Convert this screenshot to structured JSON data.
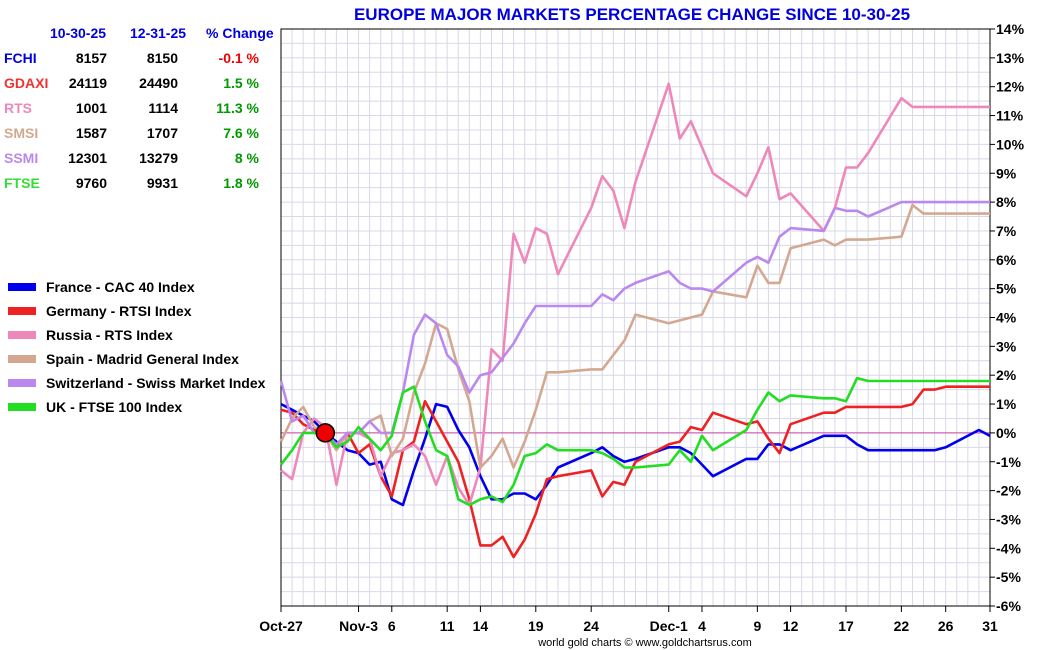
{
  "chart_data": {
    "type": "line",
    "title": "EUROPE MAJOR MARKETS PERCENTAGE CHANGE SINCE 10-30-25",
    "footer": "world gold charts © www.goldchartsrus.com",
    "ylim": [
      -6,
      14
    ],
    "y_ticks": [
      "14%",
      "13%",
      "12%",
      "11%",
      "10%",
      "9%",
      "8%",
      "7%",
      "6%",
      "5%",
      "4%",
      "3%",
      "2%",
      "1%",
      "0%",
      "-1%",
      "-2%",
      "-3%",
      "-4%",
      "-5%",
      "-6%"
    ],
    "y_tick_values": [
      14,
      13,
      12,
      11,
      10,
      9,
      8,
      7,
      6,
      5,
      4,
      3,
      2,
      1,
      0,
      -1,
      -2,
      -3,
      -4,
      -5,
      -6
    ],
    "x_day_range": [
      -3,
      61
    ],
    "x_labels": [
      {
        "label": "Oct-27",
        "day": -3
      },
      {
        "label": "Nov-3",
        "day": 4
      },
      {
        "label": "6",
        "day": 7
      },
      {
        "label": "11",
        "day": 12
      },
      {
        "label": "14",
        "day": 15
      },
      {
        "label": "19",
        "day": 20
      },
      {
        "label": "24",
        "day": 25
      },
      {
        "label": "Dec-1",
        "day": 32
      },
      {
        "label": "4",
        "day": 35
      },
      {
        "label": "9",
        "day": 40
      },
      {
        "label": "12",
        "day": 43
      },
      {
        "label": "17",
        "day": 48
      },
      {
        "label": "22",
        "day": 53
      },
      {
        "label": "26",
        "day": 57
      },
      {
        "label": "31",
        "day": 61
      }
    ],
    "zero_line_color": "#cc44aa",
    "base_marker": {
      "day": 1,
      "value": 0,
      "color": "#ee0000"
    },
    "table": {
      "headers": [
        "10-30-25",
        "12-31-25",
        "% Change"
      ],
      "rows": [
        {
          "symbol": "FCHI",
          "start": "8157",
          "end": "8150",
          "change": "-0.1 %",
          "color": "#0000dd",
          "change_color": "#ee0000"
        },
        {
          "symbol": "GDAXI",
          "start": "24119",
          "end": "24490",
          "change": "1.5 %",
          "color": "#ee3333",
          "change_color": "#009900"
        },
        {
          "symbol": "RTS",
          "start": "1001",
          "end": "1114",
          "change": "11.3 %",
          "color": "#ee88bb",
          "change_color": "#009900"
        },
        {
          "symbol": "SMSI",
          "start": "1587",
          "end": "1707",
          "change": "7.6 %",
          "color": "#d4a890",
          "change_color": "#009900"
        },
        {
          "symbol": "SSMI",
          "start": "12301",
          "end": "13279",
          "change": "8 %",
          "color": "#bb88ee",
          "change_color": "#009900"
        },
        {
          "symbol": "FTSE",
          "start": "9760",
          "end": "9931",
          "change": "1.8 %",
          "color": "#33dd33",
          "change_color": "#009900"
        }
      ]
    },
    "series": [
      {
        "name": "France - CAC 40 Index",
        "color": "#0000ee",
        "days": [
          -3,
          -2,
          -1,
          0,
          1,
          2,
          3,
          4,
          5,
          6,
          7,
          8,
          9,
          10,
          11,
          12,
          13,
          14,
          15,
          16,
          17,
          18,
          19,
          20,
          21,
          22,
          25,
          26,
          27,
          28,
          29,
          32,
          33,
          34,
          35,
          36,
          39,
          40,
          41,
          42,
          43,
          46,
          47,
          48,
          49,
          50,
          53,
          54,
          55,
          56,
          57,
          60,
          61
        ],
        "values": [
          1.0,
          0.8,
          0.6,
          0.4,
          0.0,
          -0.3,
          -0.6,
          -0.7,
          -1.1,
          -1.0,
          -2.3,
          -2.5,
          -1.3,
          -0.2,
          1.0,
          0.9,
          0.1,
          -0.5,
          -1.5,
          -2.3,
          -2.3,
          -2.1,
          -2.1,
          -2.3,
          -1.8,
          -1.2,
          -0.7,
          -0.5,
          -0.8,
          -1.0,
          -0.9,
          -0.5,
          -0.5,
          -0.7,
          -1.1,
          -1.5,
          -0.9,
          -0.9,
          -0.4,
          -0.4,
          -0.6,
          -0.1,
          -0.1,
          -0.1,
          -0.4,
          -0.6,
          -0.6,
          -0.6,
          -0.6,
          -0.6,
          -0.5,
          0.1,
          -0.1
        ]
      },
      {
        "name": "Germany - RTSI Index",
        "color": "#ee2222",
        "days": [
          -3,
          -2,
          -1,
          0,
          1,
          2,
          3,
          4,
          5,
          6,
          7,
          8,
          9,
          10,
          11,
          12,
          13,
          14,
          15,
          16,
          17,
          18,
          19,
          20,
          21,
          22,
          25,
          26,
          27,
          28,
          29,
          32,
          33,
          34,
          35,
          36,
          39,
          40,
          41,
          42,
          43,
          46,
          47,
          48,
          49,
          50,
          53,
          54,
          55,
          56,
          57,
          60,
          61
        ],
        "values": [
          0.8,
          0.7,
          0.3,
          0.1,
          0.0,
          -0.5,
          0.0,
          -0.7,
          -0.4,
          -1.5,
          -2.2,
          -0.6,
          -0.3,
          1.1,
          0.4,
          -0.3,
          -1.0,
          -2.3,
          -3.9,
          -3.9,
          -3.6,
          -4.3,
          -3.7,
          -2.8,
          -1.6,
          -1.5,
          -1.3,
          -2.2,
          -1.7,
          -1.8,
          -1.0,
          -0.4,
          -0.3,
          0.2,
          0.1,
          0.7,
          0.3,
          0.4,
          -0.2,
          -0.7,
          0.3,
          0.7,
          0.7,
          0.9,
          0.9,
          0.9,
          0.9,
          1.0,
          1.5,
          1.5,
          1.6,
          1.6,
          1.6
        ]
      },
      {
        "name": "Russia - RTS Index",
        "color": "#ee88bb",
        "days": [
          -3,
          -2,
          -1,
          0,
          1,
          2,
          3,
          4,
          5,
          6,
          7,
          8,
          9,
          10,
          11,
          12,
          13,
          14,
          15,
          16,
          17,
          18,
          19,
          20,
          21,
          22,
          25,
          26,
          27,
          28,
          29,
          32,
          33,
          34,
          35,
          36,
          39,
          40,
          41,
          42,
          43,
          46,
          47,
          48,
          49,
          50,
          53,
          54,
          55,
          56,
          57,
          60,
          61
        ],
        "values": [
          -1.3,
          -1.6,
          0.0,
          0.5,
          0.2,
          -1.8,
          0.0,
          0.0,
          -0.2,
          -1.5,
          -0.7,
          -0.6,
          -0.4,
          -0.8,
          -1.8,
          -0.8,
          -1.9,
          -2.5,
          -1.2,
          2.9,
          2.5,
          6.9,
          5.9,
          7.1,
          6.9,
          5.5,
          7.8,
          8.9,
          8.4,
          7.1,
          8.7,
          12.1,
          10.2,
          10.8,
          9.9,
          9.0,
          8.2,
          9.0,
          9.9,
          8.1,
          8.3,
          7.0,
          7.8,
          9.2,
          9.2,
          9.7,
          11.6,
          11.3,
          11.3,
          11.3,
          11.3,
          11.3,
          11.3
        ]
      },
      {
        "name": "Spain - Madrid General Index",
        "color": "#d4a890",
        "days": [
          -3,
          -2,
          -1,
          0,
          1,
          2,
          3,
          4,
          5,
          6,
          7,
          8,
          9,
          10,
          11,
          12,
          13,
          14,
          15,
          16,
          17,
          18,
          19,
          20,
          21,
          22,
          25,
          26,
          27,
          28,
          29,
          32,
          33,
          34,
          35,
          36,
          39,
          40,
          41,
          42,
          43,
          46,
          47,
          48,
          49,
          50,
          53,
          54,
          55,
          56,
          57,
          60,
          61
        ],
        "values": [
          -0.3,
          0.5,
          0.9,
          0.2,
          0.0,
          -0.6,
          0.0,
          0.0,
          0.4,
          0.6,
          -0.8,
          -0.2,
          1.4,
          2.4,
          3.8,
          3.6,
          2.2,
          1.1,
          -1.2,
          -0.8,
          -0.2,
          -1.2,
          -0.3,
          0.8,
          2.1,
          2.1,
          2.2,
          2.2,
          2.7,
          3.2,
          4.1,
          3.8,
          3.9,
          4.0,
          4.1,
          4.9,
          4.7,
          5.8,
          5.2,
          5.2,
          6.4,
          6.7,
          6.5,
          6.7,
          6.7,
          6.7,
          6.8,
          7.9,
          7.6,
          7.6,
          7.6,
          7.6,
          7.6
        ]
      },
      {
        "name": "Switzerland - Swiss Market Index",
        "color": "#bb88ee",
        "days": [
          -3,
          -2,
          -1,
          0,
          1,
          2,
          3,
          4,
          5,
          6,
          7,
          8,
          9,
          10,
          11,
          12,
          13,
          14,
          15,
          16,
          17,
          18,
          19,
          20,
          21,
          22,
          25,
          26,
          27,
          28,
          29,
          32,
          33,
          34,
          35,
          36,
          39,
          40,
          41,
          42,
          43,
          46,
          47,
          48,
          49,
          50,
          53,
          54,
          55,
          56,
          57,
          60,
          61
        ],
        "values": [
          1.8,
          0.4,
          0.6,
          0.0,
          0.0,
          -0.4,
          0.0,
          0.0,
          0.4,
          0.0,
          0.0,
          1.4,
          3.4,
          4.1,
          3.8,
          2.7,
          2.3,
          1.4,
          2.0,
          2.1,
          2.6,
          3.1,
          3.8,
          4.4,
          4.4,
          4.4,
          4.4,
          4.8,
          4.6,
          5.0,
          5.2,
          5.6,
          5.2,
          5.0,
          5.0,
          4.9,
          5.9,
          6.1,
          5.9,
          6.8,
          7.1,
          7.0,
          7.8,
          7.7,
          7.7,
          7.5,
          8.0,
          8.0,
          8.0,
          8.0,
          8.0,
          8.0,
          8.0
        ]
      },
      {
        "name": "UK - FTSE 100 Index",
        "color": "#22dd22",
        "days": [
          -3,
          -2,
          -1,
          0,
          1,
          2,
          3,
          4,
          5,
          6,
          7,
          8,
          9,
          10,
          11,
          12,
          13,
          14,
          15,
          16,
          17,
          18,
          19,
          20,
          21,
          22,
          25,
          26,
          27,
          28,
          29,
          32,
          33,
          34,
          35,
          36,
          39,
          40,
          41,
          42,
          43,
          46,
          47,
          48,
          49,
          50,
          53,
          54,
          55,
          56,
          57,
          60,
          61
        ],
        "values": [
          -1.1,
          -0.6,
          0.0,
          0.0,
          0.0,
          -0.5,
          -0.3,
          0.2,
          -0.2,
          -0.6,
          -0.1,
          1.4,
          1.6,
          0.4,
          -0.6,
          -0.8,
          -2.3,
          -2.5,
          -2.3,
          -2.2,
          -2.4,
          -1.8,
          -0.8,
          -0.7,
          -0.4,
          -0.6,
          -0.6,
          -0.7,
          -0.9,
          -1.2,
          -1.2,
          -1.1,
          -0.6,
          -1.0,
          -0.1,
          -0.6,
          0.1,
          0.8,
          1.4,
          1.1,
          1.3,
          1.2,
          1.2,
          1.1,
          1.9,
          1.8,
          1.8,
          1.8,
          1.8,
          1.8,
          1.8,
          1.8,
          1.8
        ]
      }
    ]
  }
}
